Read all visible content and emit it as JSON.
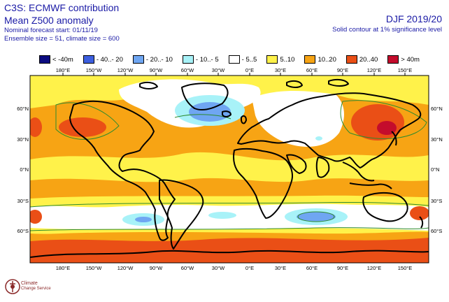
{
  "header": {
    "line1": "C3S: ECMWF contribution",
    "line2": "Mean Z500 anomaly",
    "line3": "Nominal forecast start: 01/11/19",
    "line4": "Ensemble size = 51, climate size = 600",
    "season": "DJF 2019/20",
    "contour_note": "Solid contour at 1% significance level"
  },
  "legend": [
    {
      "label": "< -40m",
      "color": "#0b0b80"
    },
    {
      "label": "- 40..- 20",
      "color": "#3d5fe0"
    },
    {
      "label": "- 20..- 10",
      "color": "#6fa6f2"
    },
    {
      "label": "- 10..- 5",
      "color": "#a8f2f8"
    },
    {
      "label": "- 5..5",
      "color": "#ffffff"
    },
    {
      "label": "5..10",
      "color": "#fff24a"
    },
    {
      "label": "10..20",
      "color": "#f7a414"
    },
    {
      "label": "20..40",
      "color": "#ea4f16"
    },
    {
      "label": "> 40m",
      "color": "#c40c2c"
    }
  ],
  "axes": {
    "lon_labels": [
      "180°E",
      "150°W",
      "120°W",
      "90°W",
      "60°W",
      "30°W",
      "0°E",
      "30°E",
      "60°E",
      "90°E",
      "120°E",
      "150°E"
    ],
    "lat_labels": [
      "60°N",
      "30°N",
      "0°N",
      "30°S",
      "60°S"
    ]
  },
  "logo": {
    "line1": "Climate",
    "line2": "Change Service"
  },
  "colors": {
    "text_blue": "#1a1aa6",
    "contour_green": "#2e8b2e",
    "coast": "#000000"
  }
}
